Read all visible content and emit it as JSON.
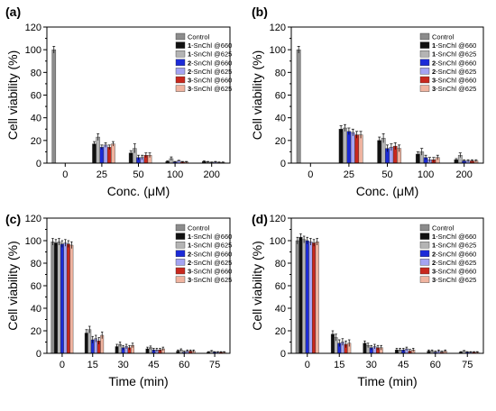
{
  "legend": [
    {
      "num": "",
      "text": "Control",
      "color": "#8c8c8c"
    },
    {
      "num": "1",
      "text": "-SnChl @660",
      "color": "#111111"
    },
    {
      "num": "1",
      "text": "-SnChl @625",
      "color": "#b4b4b4"
    },
    {
      "num": "2",
      "text": "-SnChl @660",
      "color": "#1c2bd8"
    },
    {
      "num": "2",
      "text": "-SnChl @625",
      "color": "#a4a4f2"
    },
    {
      "num": "3",
      "text": "-SnChl @660",
      "color": "#c8281e"
    },
    {
      "num": "3",
      "text": "-SnChl @625",
      "color": "#f0b4a0"
    }
  ],
  "chart_data": [
    {
      "panel": "(a)",
      "type": "bar",
      "xlabel": "Conc. (μM)",
      "ylabel": "Cell viability (%)",
      "categories": [
        "0",
        "25",
        "50",
        "100",
        "200"
      ],
      "ylim": [
        0,
        120
      ],
      "yticks": [
        0,
        20,
        40,
        60,
        80,
        100,
        120
      ],
      "series": [
        {
          "values": [
            100,
            null,
            null,
            null,
            null
          ],
          "errors": [
            3,
            0,
            0,
            0,
            0
          ]
        },
        {
          "values": [
            null,
            17,
            9,
            1.5,
            1.5
          ],
          "errors": [
            0,
            2,
            2,
            0.5,
            0.5
          ]
        },
        {
          "values": [
            null,
            23,
            13,
            4,
            1
          ],
          "errors": [
            0,
            3,
            4,
            1.5,
            0.5
          ]
        },
        {
          "values": [
            null,
            14,
            5,
            1,
            0.5
          ],
          "errors": [
            0,
            2,
            2,
            0.5,
            0.5
          ]
        },
        {
          "values": [
            null,
            16,
            5,
            2,
            1
          ],
          "errors": [
            0,
            2,
            2,
            0.5,
            0.5
          ]
        },
        {
          "values": [
            null,
            14,
            7,
            1,
            0.5
          ],
          "errors": [
            0,
            2,
            2,
            0.5,
            0.5
          ]
        },
        {
          "values": [
            null,
            17,
            7,
            1,
            0.5
          ],
          "errors": [
            0,
            2,
            2,
            0.5,
            0.5
          ]
        }
      ]
    },
    {
      "panel": "(b)",
      "type": "bar",
      "xlabel": "Conc. (μM)",
      "ylabel": "Cell viability (%)",
      "categories": [
        "0",
        "25",
        "50",
        "100",
        "200"
      ],
      "ylim": [
        0,
        120
      ],
      "yticks": [
        0,
        20,
        40,
        60,
        80,
        100,
        120
      ],
      "series": [
        {
          "values": [
            100,
            null,
            null,
            null,
            null
          ],
          "errors": [
            3,
            0,
            0,
            0,
            0
          ]
        },
        {
          "values": [
            null,
            30,
            20,
            8,
            3
          ],
          "errors": [
            0,
            3,
            3,
            2,
            1
          ]
        },
        {
          "values": [
            null,
            31,
            22,
            10,
            7
          ],
          "errors": [
            0,
            3,
            4,
            3,
            2
          ]
        },
        {
          "values": [
            null,
            28,
            13,
            5,
            2
          ],
          "errors": [
            0,
            3,
            3,
            2,
            1
          ]
        },
        {
          "values": [
            null,
            27,
            14,
            3,
            2
          ],
          "errors": [
            0,
            3,
            3,
            2,
            1
          ]
        },
        {
          "values": [
            null,
            25,
            15,
            3,
            2
          ],
          "errors": [
            0,
            3,
            3,
            2,
            1
          ]
        },
        {
          "values": [
            null,
            25,
            13,
            5,
            2
          ],
          "errors": [
            0,
            3,
            3,
            2,
            1
          ]
        }
      ]
    },
    {
      "panel": "(c)",
      "type": "bar",
      "xlabel": "Time (min)",
      "ylabel": "Cell viability (%)",
      "categories": [
        "0",
        "15",
        "30",
        "45",
        "60",
        "75"
      ],
      "ylim": [
        0,
        120
      ],
      "yticks": [
        0,
        20,
        40,
        60,
        80,
        100,
        120
      ],
      "series": [
        {
          "values": [
            99,
            null,
            null,
            null,
            null,
            null
          ],
          "errors": [
            3,
            0,
            0,
            0,
            0,
            0
          ]
        },
        {
          "values": [
            98,
            18,
            6,
            4,
            2,
            1
          ],
          "errors": [
            3,
            3,
            2,
            1.5,
            1,
            0.5
          ]
        },
        {
          "values": [
            99,
            21,
            8,
            5,
            3,
            2
          ],
          "errors": [
            3,
            3,
            2,
            1.5,
            1,
            0.5
          ]
        },
        {
          "values": [
            97,
            12,
            5,
            3,
            1,
            1
          ],
          "errors": [
            3,
            3,
            2,
            1.5,
            1,
            0.5
          ]
        },
        {
          "values": [
            98,
            13,
            6,
            3,
            2,
            1
          ],
          "errors": [
            3,
            3,
            2,
            1.5,
            1,
            0.5
          ]
        },
        {
          "values": [
            97,
            11,
            5,
            3,
            2,
            1
          ],
          "errors": [
            3,
            3,
            2,
            1.5,
            1,
            0.5
          ]
        },
        {
          "values": [
            96,
            16,
            7,
            4,
            2,
            1
          ],
          "errors": [
            3,
            3,
            2,
            1.5,
            1,
            0.5
          ]
        }
      ]
    },
    {
      "panel": "(d)",
      "type": "bar",
      "xlabel": "Time (min)",
      "ylabel": "Cell viability (%)",
      "categories": [
        "0",
        "15",
        "30",
        "45",
        "60",
        "75"
      ],
      "ylim": [
        0,
        120
      ],
      "yticks": [
        0,
        20,
        40,
        60,
        80,
        100,
        120
      ],
      "series": [
        {
          "values": [
            100,
            null,
            null,
            null,
            null,
            null
          ],
          "errors": [
            3,
            0,
            0,
            0,
            0,
            0
          ]
        },
        {
          "values": [
            103,
            17,
            9,
            3,
            2,
            1
          ],
          "errors": [
            3,
            3,
            2,
            1.5,
            1,
            0.5
          ]
        },
        {
          "values": [
            101,
            14,
            7,
            3,
            2,
            2
          ],
          "errors": [
            3,
            3,
            2,
            1.5,
            1,
            0.5
          ]
        },
        {
          "values": [
            100,
            9,
            5,
            3,
            1,
            1
          ],
          "errors": [
            3,
            3,
            2,
            1.5,
            1,
            0.5
          ]
        },
        {
          "values": [
            99,
            10,
            6,
            4,
            2,
            1
          ],
          "errors": [
            3,
            3,
            2,
            1.5,
            1,
            0.5
          ]
        },
        {
          "values": [
            98,
            8,
            5,
            2,
            1,
            1
          ],
          "errors": [
            3,
            3,
            2,
            1.5,
            1,
            0.5
          ]
        },
        {
          "values": [
            99,
            9,
            5,
            3,
            2,
            1
          ],
          "errors": [
            3,
            3,
            2,
            1.5,
            1,
            0.5
          ]
        }
      ]
    }
  ]
}
